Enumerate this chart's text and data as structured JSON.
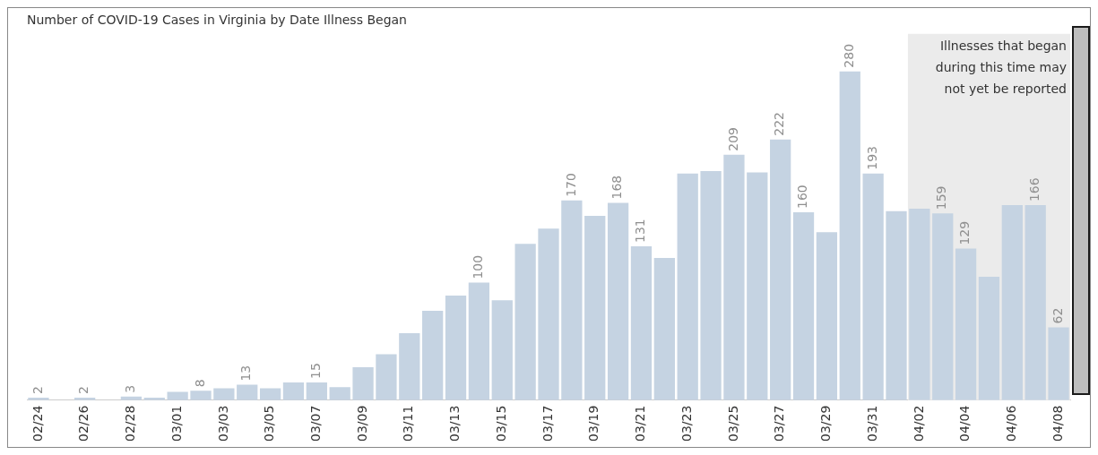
{
  "chart_data": {
    "type": "bar",
    "title": "Number of COVID-19 Cases in Virginia by Date Illness Began",
    "categories": [
      "02/24",
      null,
      "02/26",
      null,
      "02/28",
      null,
      "03/01",
      null,
      "03/03",
      null,
      "03/05",
      null,
      "03/07",
      null,
      "03/09",
      null,
      "03/11",
      null,
      "03/13",
      null,
      "03/15",
      null,
      "03/17",
      null,
      "03/19",
      null,
      "03/21",
      null,
      "03/23",
      null,
      "03/25",
      null,
      "03/27",
      null,
      "03/29",
      null,
      "03/31",
      null,
      "04/02",
      null,
      "04/04",
      null,
      "04/06",
      null,
      "04/08"
    ],
    "values": [
      2,
      null,
      2,
      null,
      3,
      2,
      7,
      8,
      10,
      13,
      10,
      15,
      15,
      11,
      28,
      39,
      57,
      76,
      89,
      100,
      85,
      133,
      146,
      170,
      157,
      168,
      131,
      121,
      193,
      195,
      209,
      194,
      222,
      160,
      143,
      280,
      193,
      161,
      163,
      159,
      129,
      105,
      166,
      166,
      62
    ],
    "value_labels": [
      "2",
      null,
      "2",
      null,
      "3",
      null,
      null,
      "8",
      null,
      "13",
      null,
      null,
      "15",
      null,
      null,
      null,
      null,
      null,
      null,
      "100",
      null,
      null,
      null,
      "170",
      null,
      "168",
      "131",
      null,
      null,
      null,
      "209",
      null,
      "222",
      "160",
      null,
      "280",
      "193",
      null,
      null,
      "159",
      "129",
      null,
      null,
      "166",
      "62"
    ],
    "color": "#c5d3e2",
    "ylim": [
      0,
      315
    ],
    "tick_labels": "x",
    "grid": false,
    "legend": false,
    "bands": [
      {
        "axis": "x",
        "from": "04/02",
        "to": "04/08",
        "label": "Illnesses that began during this time may not yet be reported",
        "color": "#ebebeb"
      }
    ]
  }
}
